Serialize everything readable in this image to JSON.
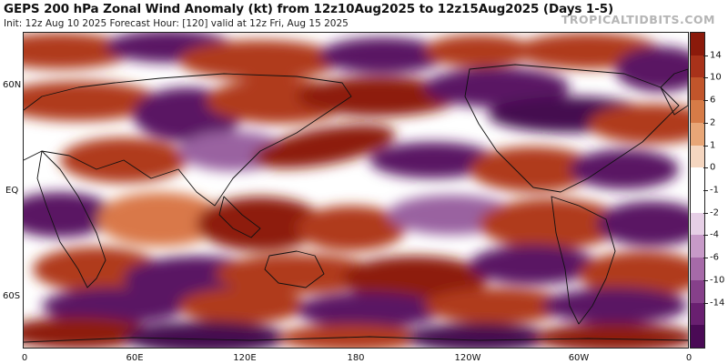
{
  "header": {
    "title": "GEPS 200 hPa Zonal Wind Anomaly (kt) from 12z10Aug2025 to 12z15Aug2025 (Days 1-5)",
    "subtitle": "Init: 12z Aug 10 2025   Forecast Hour: [120]   valid at 12z Fri, Aug 15 2025",
    "brand": "TROPICALTIDBITS.COM"
  },
  "map": {
    "projection": "equirectangular",
    "variable": "200 hPa zonal wind anomaly",
    "units": "kt",
    "lat_labels": [
      "60N",
      "EQ",
      "60S"
    ],
    "lon_labels": [
      "0",
      "60E",
      "120E",
      "180",
      "120W",
      "60W",
      "0"
    ],
    "coastlines": true,
    "positive_color": "#b03a1a",
    "negative_color": "#5a1463",
    "neutral_color": "#ffffff"
  },
  "colorbar": {
    "labels": [
      "14",
      "10",
      "6",
      "2",
      "1",
      "0",
      "-1",
      "-2",
      "-4",
      "-6",
      "-10",
      "-14"
    ],
    "colors": [
      "#8b1a0b",
      "#a8321a",
      "#c1552b",
      "#d67b47",
      "#e8a677",
      "#f5d6c0",
      "#ffffff",
      "#ffffff",
      "#e6cfe6",
      "#c79ac8",
      "#a66aa8",
      "#86408a",
      "#691f70",
      "#4a0a55"
    ]
  }
}
